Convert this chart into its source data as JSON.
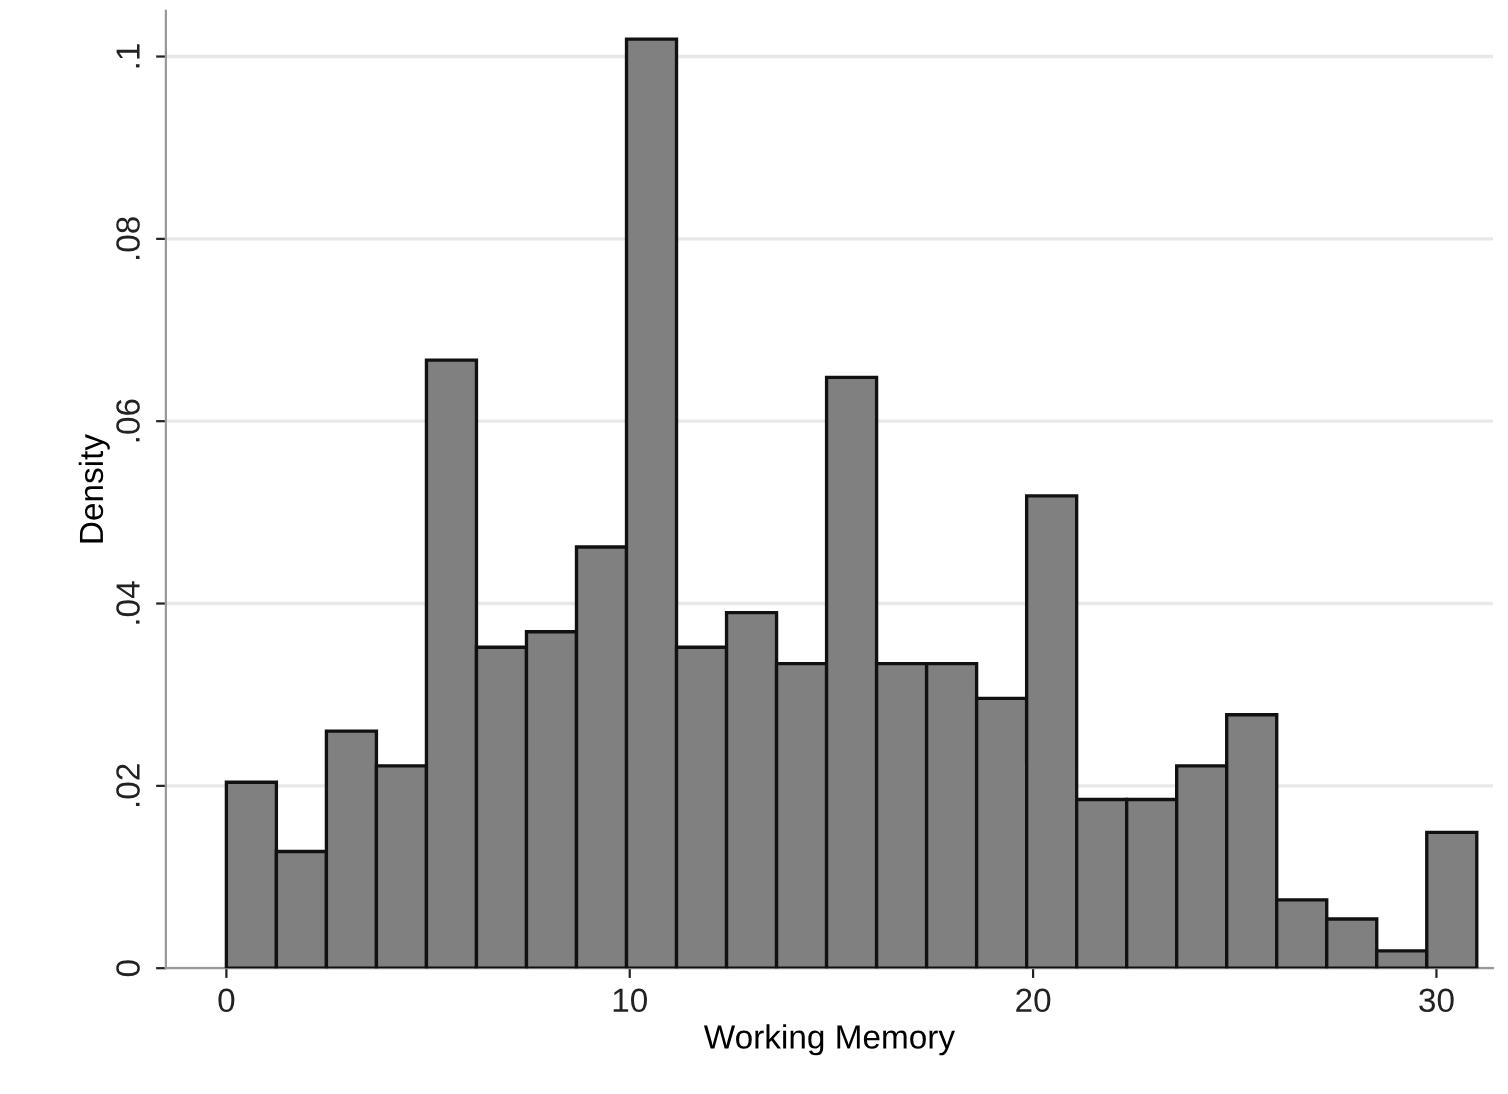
{
  "chart_data": {
    "type": "histogram",
    "xlabel": "Working Memory",
    "ylabel": "Density",
    "bins": [
      0,
      1.24,
      2.48,
      3.72,
      4.96,
      6.2,
      7.44,
      8.68,
      9.92,
      11.16,
      12.4,
      13.64,
      14.88,
      16.12,
      17.36,
      18.6,
      19.84,
      21.08,
      22.32,
      23.56,
      24.8,
      26.04,
      27.28,
      28.52,
      29.76,
      31
    ],
    "values": [
      0.0204,
      0.0128,
      0.026,
      0.0222,
      0.0667,
      0.0352,
      0.0369,
      0.0462,
      0.1019,
      0.0352,
      0.039,
      0.0334,
      0.0648,
      0.0334,
      0.0334,
      0.0296,
      0.0518,
      0.0185,
      0.0185,
      0.0222,
      0.0278,
      0.0075,
      0.0054,
      0.0019,
      0.0149
    ],
    "color": "#808080",
    "xlim": [
      -1.5,
      31.4
    ],
    "ylim": [
      0,
      0.105
    ],
    "xticks": [
      0,
      10,
      20,
      30
    ],
    "yticks": [
      {
        "value": 0,
        "label": "0"
      },
      {
        "value": 0.02,
        "label": ".02"
      },
      {
        "value": 0.04,
        "label": ".04"
      },
      {
        "value": 0.06,
        "label": ".06"
      },
      {
        "value": 0.08,
        "label": ".08"
      },
      {
        "value": 0.1,
        "label": ".1"
      }
    ],
    "grid": "y"
  }
}
